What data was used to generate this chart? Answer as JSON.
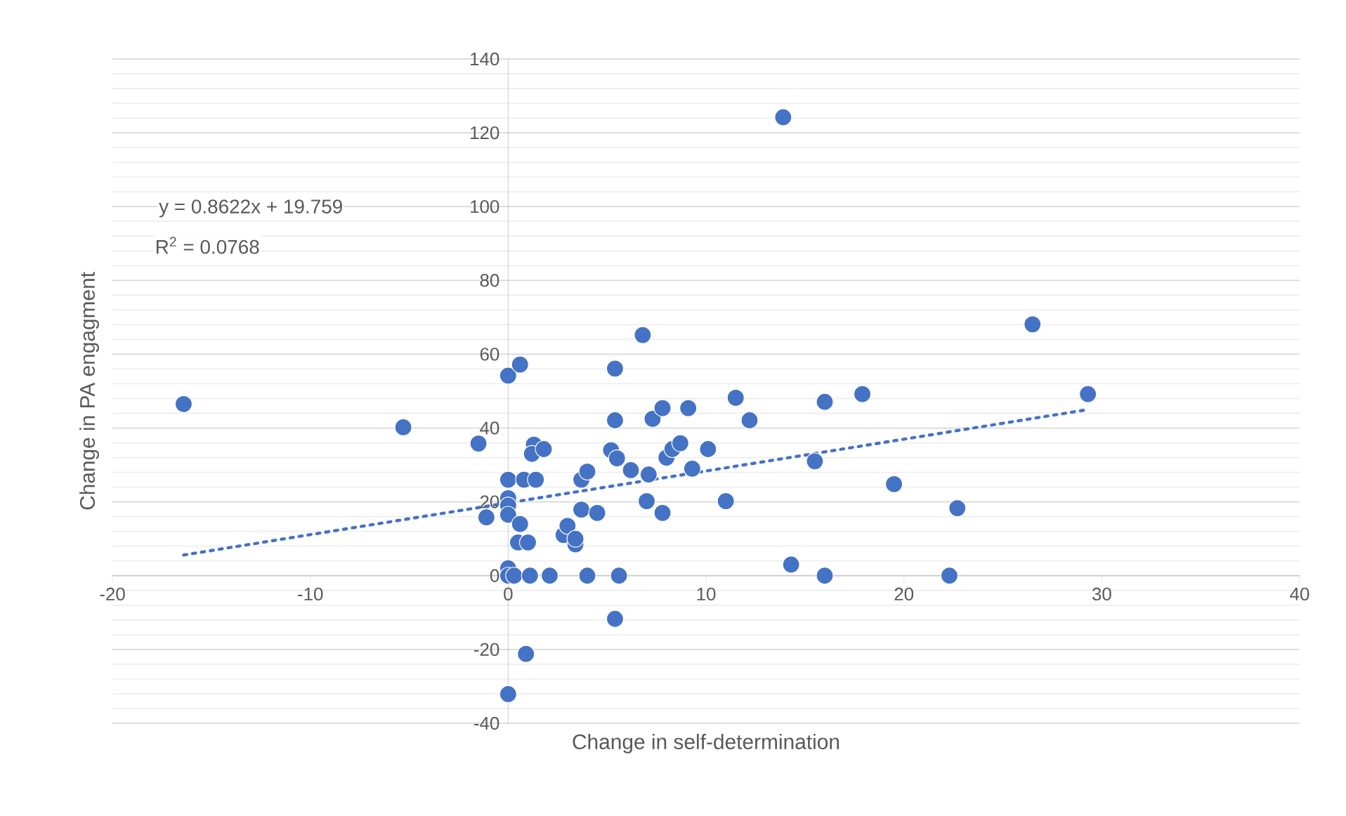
{
  "chart_data": {
    "type": "scatter",
    "xlabel": "Change in self-determination",
    "ylabel": "Change in PA engagment",
    "annotations": [
      "y = 0.8622x + 19.759",
      "R$^{2}$ = 0.0768"
    ],
    "xlim": [
      -20,
      40
    ],
    "ylim": [
      -40,
      140
    ],
    "xticks": [
      -20,
      -10,
      0,
      10,
      20,
      30,
      40
    ],
    "yticks": [
      -40,
      -20,
      0,
      20,
      40,
      60,
      80,
      100,
      120,
      140
    ],
    "grid": "y",
    "series": [
      {
        "type": "scatter",
        "color": "#4472c4",
        "marker": "circle",
        "x": [
          -16.4,
          -5.3,
          -1.5,
          -1.1,
          0,
          0.6,
          0,
          0,
          0,
          0,
          0.6,
          0.5,
          1,
          0.8,
          1.4,
          1.3,
          1.2,
          1.8,
          2.8,
          3,
          3.4,
          3.4,
          3.7,
          3.7,
          4,
          4.5,
          5.2,
          5.5,
          5.4,
          5.4,
          6.2,
          6.8,
          7.1,
          7,
          7.8,
          7.3,
          7.8,
          8,
          8.3,
          8.7,
          9.1,
          9.3,
          10.1,
          11,
          11.5,
          12.2,
          13.9,
          26.5,
          29.3,
          17.9,
          16,
          15.5,
          19.5,
          22.7,
          14.3,
          16,
          22.3,
          0,
          0,
          0.3,
          1.1,
          2.1,
          4,
          5.6,
          5.4,
          0.9,
          0
        ],
        "values": [
          46.5,
          40.2,
          35.8,
          15.8,
          54.2,
          57.2,
          26,
          21,
          19,
          16.5,
          14,
          9,
          9,
          26,
          26,
          35.5,
          33,
          34.3,
          11,
          13.5,
          8.5,
          10,
          17.9,
          26,
          28.2,
          17,
          34,
          31.8,
          56.1,
          42.1,
          28.6,
          65.2,
          27.4,
          20.2,
          17,
          42.5,
          45.4,
          32,
          34.3,
          35.9,
          45.4,
          29,
          34.3,
          20.2,
          48.2,
          42.1,
          124.2,
          68.1,
          49.2,
          49.2,
          47.1,
          31,
          24.8,
          18.3,
          3,
          0,
          0,
          2,
          0,
          0,
          0,
          0,
          0,
          0,
          -11.7,
          -21.2,
          -32.1
        ]
      },
      {
        "type": "line",
        "color": "#4472c4",
        "marker": "none",
        "line_style": "dotted",
        "x": [
          -16.4,
          29.3
        ],
        "values": [
          5.6,
          45.0
        ]
      }
    ]
  }
}
